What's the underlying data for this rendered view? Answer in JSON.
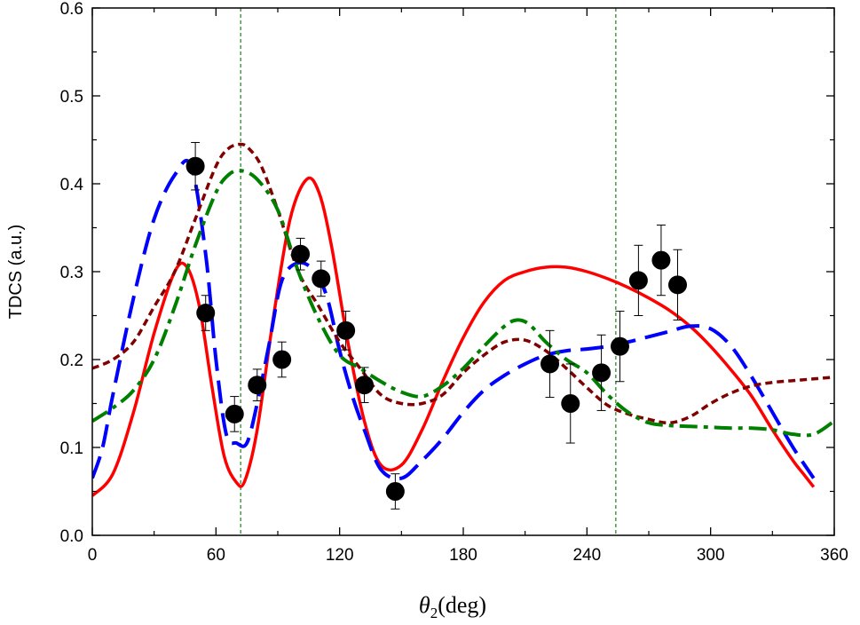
{
  "chart_data": {
    "type": "line",
    "xlabel_symbol": "θ",
    "xlabel_subscript": "2",
    "xlabel_unit": "(deg)",
    "ylabel": "TDCS (a.u.)",
    "xlim": [
      0,
      360
    ],
    "ylim": [
      0,
      0.6
    ],
    "xticks": [
      "0",
      "60",
      "120",
      "180",
      "240",
      "300",
      "360"
    ],
    "yticks": [
      "0.0",
      "0.1",
      "0.2",
      "0.3",
      "0.4",
      "0.5",
      "0.6"
    ],
    "grid": false,
    "reference_lines_x": [
      72,
      254
    ],
    "experiment": {
      "x": [
        50,
        55,
        69,
        80,
        92,
        101,
        111,
        123,
        132,
        147,
        222,
        232,
        247,
        256,
        265,
        276,
        284
      ],
      "y": [
        0.42,
        0.253,
        0.138,
        0.171,
        0.2,
        0.32,
        0.292,
        0.233,
        0.171,
        0.05,
        0.195,
        0.15,
        0.185,
        0.215,
        0.29,
        0.313,
        0.285
      ],
      "err": [
        0.027,
        0.02,
        0.02,
        0.018,
        0.02,
        0.018,
        0.02,
        0.022,
        0.02,
        0.02,
        0.038,
        0.045,
        0.043,
        0.04,
        0.04,
        0.04,
        0.04
      ]
    },
    "series": [
      {
        "style": "solid",
        "color": "#ff0000",
        "x": [
          0,
          10,
          20,
          30,
          40,
          46,
          52,
          58,
          64,
          70,
          74,
          80,
          88,
          96,
          104,
          110,
          116,
          124,
          132,
          140,
          150,
          160,
          170,
          180,
          190,
          200,
          210,
          220,
          230,
          240,
          250,
          260,
          270,
          280,
          290,
          300,
          310,
          320,
          330,
          340,
          345,
          350
        ],
        "y": [
          0.045,
          0.07,
          0.14,
          0.23,
          0.3,
          0.305,
          0.26,
          0.17,
          0.09,
          0.06,
          0.062,
          0.12,
          0.25,
          0.36,
          0.405,
          0.39,
          0.33,
          0.22,
          0.13,
          0.08,
          0.08,
          0.12,
          0.175,
          0.225,
          0.265,
          0.29,
          0.3,
          0.305,
          0.305,
          0.3,
          0.292,
          0.282,
          0.27,
          0.256,
          0.238,
          0.215,
          0.188,
          0.158,
          0.12,
          0.085,
          0.07,
          0.055
        ]
      },
      {
        "style": "long-dash",
        "color": "#0000ff",
        "x": [
          0,
          5,
          10,
          20,
          30,
          40,
          48,
          55,
          60,
          65,
          70,
          75,
          80,
          86,
          92,
          100,
          108,
          114,
          120,
          126,
          132,
          140,
          150,
          160,
          170,
          180,
          190,
          200,
          210,
          220,
          230,
          240,
          250,
          260,
          270,
          280,
          290,
          300,
          310,
          320,
          330,
          340,
          350
        ],
        "y": [
          0.065,
          0.1,
          0.16,
          0.27,
          0.36,
          0.41,
          0.42,
          0.32,
          0.2,
          0.115,
          0.105,
          0.105,
          0.15,
          0.22,
          0.29,
          0.31,
          0.3,
          0.27,
          0.21,
          0.16,
          0.12,
          0.075,
          0.065,
          0.085,
          0.11,
          0.14,
          0.165,
          0.182,
          0.195,
          0.205,
          0.21,
          0.212,
          0.215,
          0.22,
          0.226,
          0.232,
          0.238,
          0.235,
          0.215,
          0.18,
          0.14,
          0.1,
          0.065
        ]
      },
      {
        "style": "short-dash",
        "color": "#800000",
        "x": [
          0,
          10,
          20,
          30,
          40,
          50,
          60,
          66,
          72,
          76,
          82,
          90,
          100,
          110,
          120,
          130,
          140,
          150,
          160,
          170,
          180,
          190,
          200,
          210,
          220,
          230,
          240,
          250,
          260,
          270,
          280,
          290,
          300,
          310,
          320,
          330,
          340,
          350,
          360
        ],
        "y": [
          0.19,
          0.2,
          0.22,
          0.26,
          0.3,
          0.36,
          0.42,
          0.44,
          0.445,
          0.44,
          0.42,
          0.37,
          0.3,
          0.26,
          0.22,
          0.19,
          0.16,
          0.15,
          0.15,
          0.16,
          0.185,
          0.205,
          0.22,
          0.222,
          0.21,
          0.19,
          0.168,
          0.148,
          0.138,
          0.132,
          0.128,
          0.135,
          0.15,
          0.162,
          0.17,
          0.174,
          0.176,
          0.178,
          0.18
        ]
      },
      {
        "style": "dash-dot",
        "color": "#008000",
        "x": [
          0,
          10,
          20,
          30,
          40,
          50,
          60,
          66,
          72,
          80,
          90,
          100,
          110,
          120,
          130,
          140,
          150,
          160,
          170,
          180,
          190,
          200,
          206,
          212,
          220,
          230,
          240,
          250,
          260,
          270,
          280,
          290,
          300,
          310,
          320,
          330,
          340,
          350,
          360
        ],
        "y": [
          0.13,
          0.145,
          0.165,
          0.2,
          0.26,
          0.33,
          0.39,
          0.41,
          0.415,
          0.405,
          0.37,
          0.3,
          0.245,
          0.205,
          0.19,
          0.175,
          0.163,
          0.158,
          0.17,
          0.19,
          0.215,
          0.238,
          0.245,
          0.24,
          0.22,
          0.2,
          0.185,
          0.16,
          0.14,
          0.128,
          0.125,
          0.124,
          0.123,
          0.122,
          0.122,
          0.12,
          0.115,
          0.115,
          0.13
        ]
      }
    ]
  }
}
